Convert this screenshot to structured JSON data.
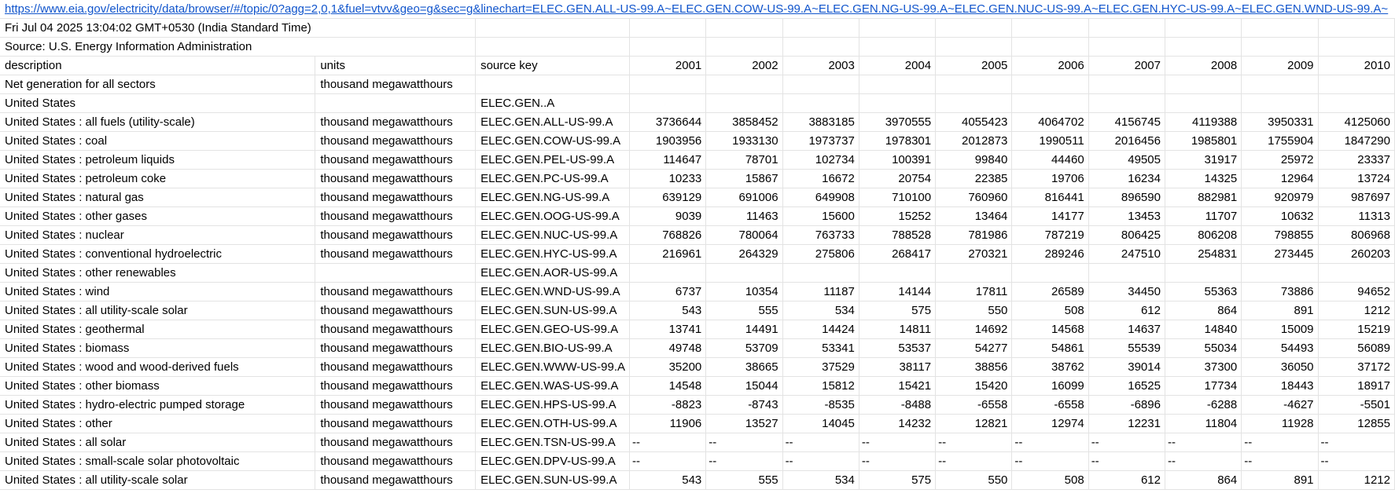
{
  "url": "https://www.eia.gov/electricity/data/browser/#/topic/0?agg=2,0,1&fuel=vtvv&geo=g&sec=g&linechart=ELEC.GEN.ALL-US-99.A~ELEC.GEN.COW-US-99.A~ELEC.GEN.NG-US-99.A~ELEC.GEN.NUC-US-99.A~ELEC.GEN.HYC-US-99.A~ELEC.GEN.WND-US-99.A~",
  "timestamp": "Fri Jul 04 2025 13:04:02 GMT+0530 (India Standard Time)",
  "source": "Source: U.S. Energy Information Administration",
  "headers": {
    "description": "description",
    "units": "units",
    "source_key": "source key",
    "years": [
      "2001",
      "2002",
      "2003",
      "2004",
      "2005",
      "2006",
      "2007",
      "2008",
      "2009",
      "2010"
    ]
  },
  "rows": [
    {
      "description": "Net generation for all sectors",
      "units": "thousand megawatthours",
      "key": "",
      "values": []
    },
    {
      "description": "United States",
      "units": "",
      "key": "ELEC.GEN..A",
      "values": []
    },
    {
      "description": "United States : all fuels (utility-scale)",
      "units": "thousand megawatthours",
      "key": "ELEC.GEN.ALL-US-99.A",
      "values": [
        "3736644",
        "3858452",
        "3883185",
        "3970555",
        "4055423",
        "4064702",
        "4156745",
        "4119388",
        "3950331",
        "4125060"
      ]
    },
    {
      "description": "United States : coal",
      "units": "thousand megawatthours",
      "key": "ELEC.GEN.COW-US-99.A",
      "values": [
        "1903956",
        "1933130",
        "1973737",
        "1978301",
        "2012873",
        "1990511",
        "2016456",
        "1985801",
        "1755904",
        "1847290"
      ]
    },
    {
      "description": "United States : petroleum liquids",
      "units": "thousand megawatthours",
      "key": "ELEC.GEN.PEL-US-99.A",
      "values": [
        "114647",
        "78701",
        "102734",
        "100391",
        "99840",
        "44460",
        "49505",
        "31917",
        "25972",
        "23337"
      ]
    },
    {
      "description": "United States : petroleum coke",
      "units": "thousand megawatthours",
      "key": "ELEC.GEN.PC-US-99.A",
      "values": [
        "10233",
        "15867",
        "16672",
        "20754",
        "22385",
        "19706",
        "16234",
        "14325",
        "12964",
        "13724"
      ]
    },
    {
      "description": "United States : natural gas",
      "units": "thousand megawatthours",
      "key": "ELEC.GEN.NG-US-99.A",
      "values": [
        "639129",
        "691006",
        "649908",
        "710100",
        "760960",
        "816441",
        "896590",
        "882981",
        "920979",
        "987697"
      ]
    },
    {
      "description": "United States : other gases",
      "units": "thousand megawatthours",
      "key": "ELEC.GEN.OOG-US-99.A",
      "values": [
        "9039",
        "11463",
        "15600",
        "15252",
        "13464",
        "14177",
        "13453",
        "11707",
        "10632",
        "11313"
      ]
    },
    {
      "description": "United States : nuclear",
      "units": "thousand megawatthours",
      "key": "ELEC.GEN.NUC-US-99.A",
      "values": [
        "768826",
        "780064",
        "763733",
        "788528",
        "781986",
        "787219",
        "806425",
        "806208",
        "798855",
        "806968"
      ]
    },
    {
      "description": "United States : conventional hydroelectric",
      "units": "thousand megawatthours",
      "key": "ELEC.GEN.HYC-US-99.A",
      "values": [
        "216961",
        "264329",
        "275806",
        "268417",
        "270321",
        "289246",
        "247510",
        "254831",
        "273445",
        "260203"
      ]
    },
    {
      "description": "United States : other renewables",
      "units": "",
      "key": "ELEC.GEN.AOR-US-99.A",
      "values": []
    },
    {
      "description": "United States : wind",
      "units": "thousand megawatthours",
      "key": "ELEC.GEN.WND-US-99.A",
      "values": [
        "6737",
        "10354",
        "11187",
        "14144",
        "17811",
        "26589",
        "34450",
        "55363",
        "73886",
        "94652"
      ]
    },
    {
      "description": "United States : all utility-scale solar",
      "units": "thousand megawatthours",
      "key": "ELEC.GEN.SUN-US-99.A",
      "values": [
        "543",
        "555",
        "534",
        "575",
        "550",
        "508",
        "612",
        "864",
        "891",
        "1212"
      ]
    },
    {
      "description": "United States : geothermal",
      "units": "thousand megawatthours",
      "key": "ELEC.GEN.GEO-US-99.A",
      "values": [
        "13741",
        "14491",
        "14424",
        "14811",
        "14692",
        "14568",
        "14637",
        "14840",
        "15009",
        "15219"
      ]
    },
    {
      "description": "United States : biomass",
      "units": "thousand megawatthours",
      "key": "ELEC.GEN.BIO-US-99.A",
      "values": [
        "49748",
        "53709",
        "53341",
        "53537",
        "54277",
        "54861",
        "55539",
        "55034",
        "54493",
        "56089"
      ]
    },
    {
      "description": "United States : wood and wood-derived fuels",
      "units": "thousand megawatthours",
      "key": "ELEC.GEN.WWW-US-99.A",
      "values": [
        "35200",
        "38665",
        "37529",
        "38117",
        "38856",
        "38762",
        "39014",
        "37300",
        "36050",
        "37172"
      ]
    },
    {
      "description": "United States : other biomass",
      "units": "thousand megawatthours",
      "key": "ELEC.GEN.WAS-US-99.A",
      "values": [
        "14548",
        "15044",
        "15812",
        "15421",
        "15420",
        "16099",
        "16525",
        "17734",
        "18443",
        "18917"
      ]
    },
    {
      "description": "United States : hydro-electric pumped storage",
      "units": "thousand megawatthours",
      "key": "ELEC.GEN.HPS-US-99.A",
      "values": [
        "-8823",
        "-8743",
        "-8535",
        "-8488",
        "-6558",
        "-6558",
        "-6896",
        "-6288",
        "-4627",
        "-5501"
      ]
    },
    {
      "description": "United States : other",
      "units": "thousand megawatthours",
      "key": "ELEC.GEN.OTH-US-99.A",
      "values": [
        "11906",
        "13527",
        "14045",
        "14232",
        "12821",
        "12974",
        "12231",
        "11804",
        "11928",
        "12855"
      ]
    },
    {
      "description": "United States : all solar",
      "units": "thousand megawatthours",
      "key": "ELEC.GEN.TSN-US-99.A",
      "values": [
        "--",
        "--",
        "--",
        "--",
        "--",
        "--",
        "--",
        "--",
        "--",
        "--"
      ]
    },
    {
      "description": "United States : small-scale solar photovoltaic",
      "units": "thousand megawatthours",
      "key": "ELEC.GEN.DPV-US-99.A",
      "values": [
        "--",
        "--",
        "--",
        "--",
        "--",
        "--",
        "--",
        "--",
        "--",
        "--"
      ]
    },
    {
      "description": "United States : all utility-scale solar",
      "units": "thousand megawatthours",
      "key": "ELEC.GEN.SUN-US-99.A",
      "values": [
        "543",
        "555",
        "534",
        "575",
        "550",
        "508",
        "612",
        "864",
        "891",
        "1212"
      ]
    }
  ]
}
